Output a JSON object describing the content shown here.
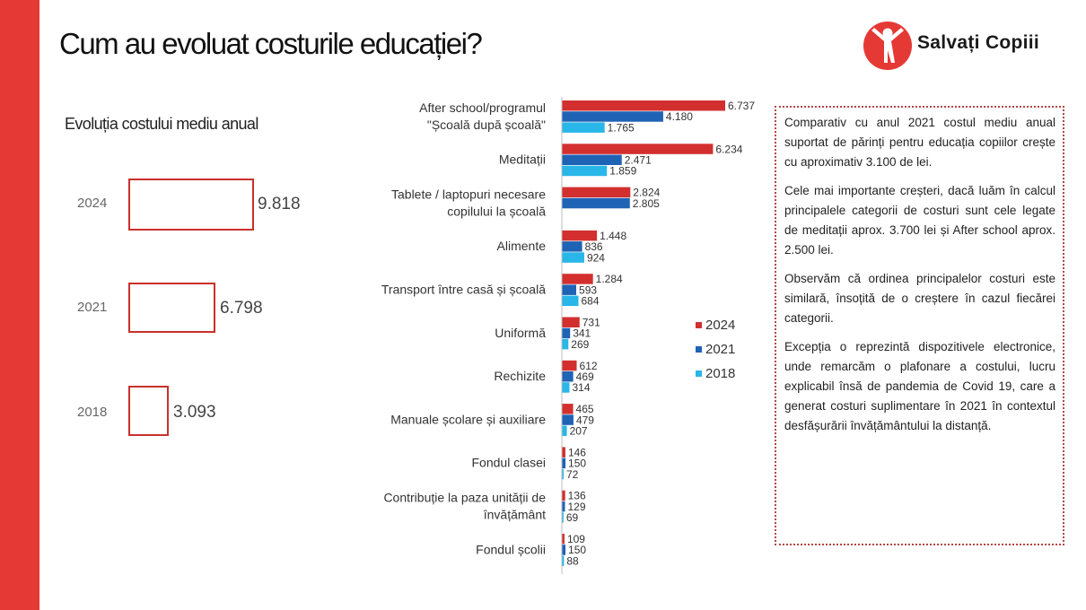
{
  "title": "Cum au evoluat costurile educației?",
  "logo": {
    "text": "Salvați Copiii",
    "accent_color": "#e53935"
  },
  "brand_color": "#e53935",
  "totals": {
    "subtitle": "Evoluția costului mediu anual",
    "items": [
      {
        "year": "2024",
        "value": "9.818",
        "amount": 9818
      },
      {
        "year": "2021",
        "value": "6.798",
        "amount": 6798
      },
      {
        "year": "2018",
        "value": "3.093",
        "amount": 3093
      }
    ]
  },
  "chart_data": {
    "type": "bar",
    "orientation": "horizontal",
    "categories": [
      "After school/programul \"Școală după școală\"",
      "Meditații",
      "Tablete / laptopuri necesare copilului la școală",
      "Alimente",
      "Transport între casă și școală",
      "Uniformă",
      "Rechizite",
      "Manuale școlare și auxiliare",
      "Fondul clasei",
      "Contribuție la paza unității de învățământ",
      "Fondul școlii"
    ],
    "category_lines": [
      [
        "After school/programul",
        "\"Școală după școală\""
      ],
      [
        "Meditații"
      ],
      [
        "Tablete / laptopuri necesare",
        "copilului la școală"
      ],
      [
        "Alimente"
      ],
      [
        "Transport între casă și școală"
      ],
      [
        "Uniformă"
      ],
      [
        "Rechizite"
      ],
      [
        "Manuale școlare și auxiliare"
      ],
      [
        "Fondul clasei"
      ],
      [
        "Contribuție la paza unității de",
        "învățământ"
      ],
      [
        "Fondul școlii"
      ]
    ],
    "series": [
      {
        "name": "2024",
        "color": "#d32f2f",
        "values": [
          6737,
          6234,
          2824,
          1448,
          1284,
          731,
          612,
          465,
          146,
          136,
          109
        ],
        "labels": [
          "6.737",
          "6.234",
          "2.824",
          "1.448",
          "1.284",
          "731",
          "612",
          "465",
          "146",
          "136",
          "109"
        ]
      },
      {
        "name": "2021",
        "color": "#1f63b5",
        "values": [
          4180,
          2471,
          2805,
          836,
          593,
          341,
          469,
          479,
          150,
          129,
          150
        ],
        "labels": [
          "4.180",
          "2.471",
          "2.805",
          "836",
          "593",
          "341",
          "469",
          "479",
          "150",
          "129",
          "150"
        ]
      },
      {
        "name": "2018",
        "color": "#29b6e8",
        "values": [
          1765,
          1859,
          null,
          924,
          684,
          269,
          314,
          207,
          72,
          69,
          88
        ],
        "labels": [
          "1.765",
          "1.859",
          "",
          "924",
          "684",
          "269",
          "314",
          "207",
          "72",
          "69",
          "88"
        ]
      }
    ],
    "legend_position": "right",
    "grid": false
  },
  "notes": [
    "Comparativ cu anul 2021 costul mediu anual suportat de părinți pentru educația copiilor crește cu aproximativ 3.100 de lei.",
    "Cele mai importante creșteri, dacă luăm în calcul principalele categorii de costuri sunt cele legate de meditații aprox. 3.700 lei și After school aprox. 2.500 lei.",
    "Observăm că ordinea principalelor costuri este similară, însoțită de o creștere în cazul fiecărei categorii.",
    "Excepția o reprezintă dispozitivele electronice, unde remarcăm o plafonare a costului, lucru explicabil însă de pandemia de Covid 19, care a generat costuri suplimentare în 2021 în contextul desfășurării învățământului la distanță."
  ]
}
